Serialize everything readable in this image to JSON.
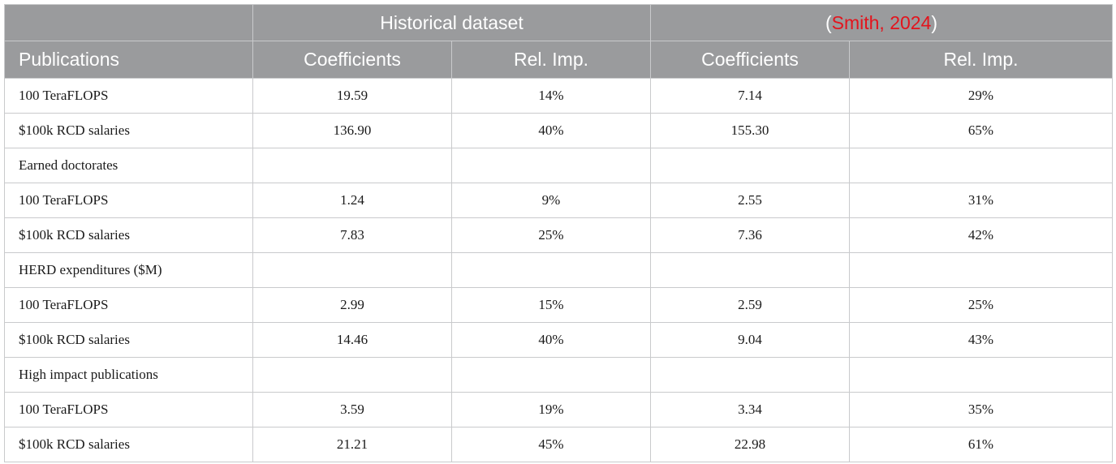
{
  "header": {
    "group_historical": "Historical dataset",
    "group_smith_open": "(",
    "group_smith_link": "Smith, 2024",
    "group_smith_close": ")",
    "row_label": "Publications",
    "col_coef_1": "Coefficients",
    "col_relimp_1": "Rel. Imp.",
    "col_coef_2": "Coefficients",
    "col_relimp_2": "Rel. Imp."
  },
  "rows": [
    {
      "label": "100 TeraFLOPS",
      "hist_coef": "19.59",
      "hist_rel": "14%",
      "smith_coef": "7.14",
      "smith_rel": "29%"
    },
    {
      "label": "$100k RCD salaries",
      "hist_coef": "136.90",
      "hist_rel": "40%",
      "smith_coef": "155.30",
      "smith_rel": "65%"
    },
    {
      "label": "Earned doctorates",
      "hist_coef": "",
      "hist_rel": "",
      "smith_coef": "",
      "smith_rel": ""
    },
    {
      "label": "100 TeraFLOPS",
      "hist_coef": "1.24",
      "hist_rel": "9%",
      "smith_coef": "2.55",
      "smith_rel": "31%"
    },
    {
      "label": "$100k RCD salaries",
      "hist_coef": "7.83",
      "hist_rel": "25%",
      "smith_coef": "7.36",
      "smith_rel": "42%"
    },
    {
      "label": "HERD expenditures ($M)",
      "hist_coef": "",
      "hist_rel": "",
      "smith_coef": "",
      "smith_rel": ""
    },
    {
      "label": "100 TeraFLOPS",
      "hist_coef": "2.99",
      "hist_rel": "15%",
      "smith_coef": "2.59",
      "smith_rel": "25%"
    },
    {
      "label": "$100k RCD salaries",
      "hist_coef": "14.46",
      "hist_rel": "40%",
      "smith_coef": "9.04",
      "smith_rel": "43%"
    },
    {
      "label": "High impact publications",
      "hist_coef": "",
      "hist_rel": "",
      "smith_coef": "",
      "smith_rel": ""
    },
    {
      "label": "100 TeraFLOPS",
      "hist_coef": "3.59",
      "hist_rel": "19%",
      "smith_coef": "3.34",
      "smith_rel": "35%"
    },
    {
      "label": "$100k RCD salaries",
      "hist_coef": "21.21",
      "hist_rel": "45%",
      "smith_coef": "22.98",
      "smith_rel": "61%"
    }
  ],
  "colors": {
    "header_bg": "#9a9b9d",
    "header_text": "#ffffff",
    "citation_link": "#e3141d",
    "grid_line": "#c9cacc"
  }
}
